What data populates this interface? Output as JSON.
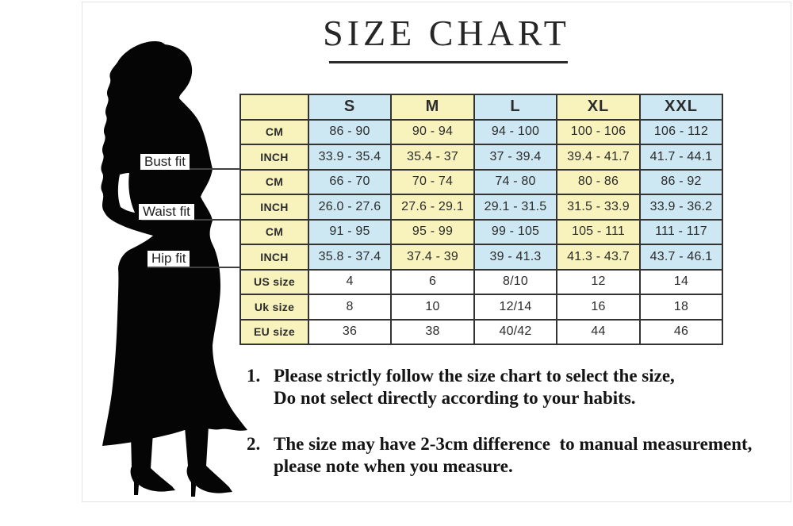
{
  "title": {
    "text": "SIZE CHART"
  },
  "figure_labels": {
    "bust": "Bust fit",
    "waist": "Waist fit",
    "hip": "Hip fit"
  },
  "table": {
    "corner": "",
    "size_headers": [
      "S",
      "M",
      "L",
      "XL",
      "XXL"
    ],
    "rows": [
      {
        "label": "CM",
        "kind": "measure",
        "values": [
          "86 - 90",
          "90 - 94",
          "94 - 100",
          "100 - 106",
          "106 - 112"
        ]
      },
      {
        "label": "INCH",
        "kind": "measure",
        "values": [
          "33.9 - 35.4",
          "35.4 - 37",
          "37 - 39.4",
          "39.4 - 41.7",
          "41.7 - 44.1"
        ]
      },
      {
        "label": "CM",
        "kind": "measure",
        "values": [
          "66 - 70",
          "70 - 74",
          "74 - 80",
          "80 - 86",
          "86 - 92"
        ]
      },
      {
        "label": "INCH",
        "kind": "measure",
        "values": [
          "26.0 - 27.6",
          "27.6 - 29.1",
          "29.1 - 31.5",
          "31.5 - 33.9",
          "33.9 - 36.2"
        ]
      },
      {
        "label": "CM",
        "kind": "measure",
        "values": [
          "91 - 95",
          "95 - 99",
          "99 - 105",
          "105 - 111",
          "111 - 117"
        ]
      },
      {
        "label": "INCH",
        "kind": "measure",
        "values": [
          "35.8 - 37.4",
          "37.4 - 39",
          "39 - 41.3",
          "41.3 - 43.7",
          "43.7 - 46.1"
        ]
      },
      {
        "label": "US size",
        "kind": "size",
        "values": [
          "4",
          "6",
          "8/10",
          "12",
          "14"
        ]
      },
      {
        "label": "Uk size",
        "kind": "size",
        "values": [
          "8",
          "10",
          "12/14",
          "16",
          "18"
        ]
      },
      {
        "label": "EU size",
        "kind": "size",
        "values": [
          "36",
          "38",
          "40/42",
          "44",
          "46"
        ]
      }
    ]
  },
  "notes": [
    {
      "num": "1.",
      "lines": [
        "Please strictly follow the size chart to select the size,",
        "Do not select directly according to your habits."
      ]
    },
    {
      "num": "2.",
      "lines": [
        "The size may have 2-3cm difference  to manual measurement,",
        "please note when you measure."
      ]
    }
  ],
  "colors": {
    "cell_yellow": "#f8f2bd",
    "cell_blue": "#cde7f3",
    "cell_white": "#ffffff",
    "grid": "#333333",
    "title_underline": "#2b2b2b",
    "silhouette": "#050505",
    "fit_line": "#404040"
  },
  "chart_data": {
    "type": "table",
    "title": "SIZE CHART",
    "columns": [
      "",
      "S",
      "M",
      "L",
      "XL",
      "XXL"
    ],
    "row_sections": [
      "Bust fit",
      "Bust fit",
      "Waist fit",
      "Waist fit",
      "Hip fit",
      "Hip fit",
      "",
      "",
      ""
    ],
    "rows": [
      [
        "CM",
        "86 - 90",
        "90 - 94",
        "94 - 100",
        "100 - 106",
        "106 - 112"
      ],
      [
        "INCH",
        "33.9 - 35.4",
        "35.4 - 37",
        "37 - 39.4",
        "39.4 - 41.7",
        "41.7 - 44.1"
      ],
      [
        "CM",
        "66 - 70",
        "70 - 74",
        "74 - 80",
        "80 - 86",
        "86 - 92"
      ],
      [
        "INCH",
        "26.0 - 27.6",
        "27.6 - 29.1",
        "29.1 - 31.5",
        "31.5 - 33.9",
        "33.9 - 36.2"
      ],
      [
        "CM",
        "91 - 95",
        "95 - 99",
        "99 - 105",
        "105 - 111",
        "111 - 117"
      ],
      [
        "INCH",
        "35.8 - 37.4",
        "37.4 - 39",
        "39 - 41.3",
        "41.3 - 43.7",
        "43.7 - 46.1"
      ],
      [
        "US size",
        "4",
        "6",
        "8/10",
        "12",
        "14"
      ],
      [
        "Uk size",
        "8",
        "10",
        "12/14",
        "16",
        "18"
      ],
      [
        "EU size",
        "36",
        "38",
        "40/42",
        "44",
        "46"
      ]
    ],
    "notes": [
      "1. Please strictly follow the size chart to select the size, Do not select directly according to your habits.",
      "2. The size may have 2-3cm difference to manual measurement, please note when you measure."
    ]
  }
}
